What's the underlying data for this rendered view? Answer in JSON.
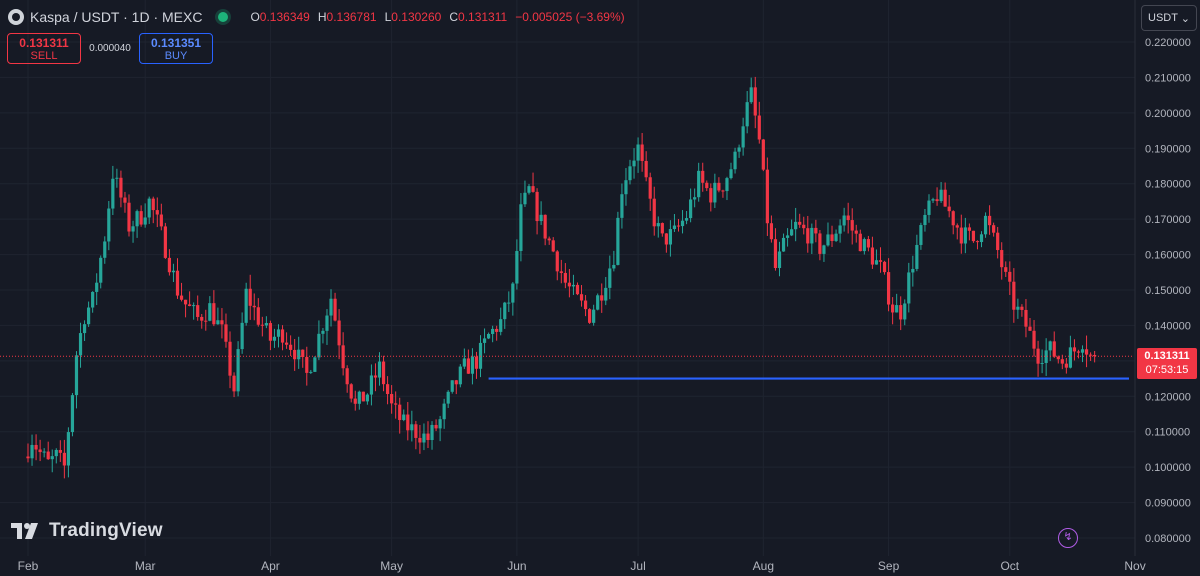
{
  "header": {
    "symbol_title": "Kaspa / USDT · 1D · MEXC",
    "ohlc": [
      {
        "key": "O",
        "value": "0.136349"
      },
      {
        "key": "H",
        "value": "0.136781"
      },
      {
        "key": "L",
        "value": "0.130260"
      },
      {
        "key": "C",
        "value": "0.131311"
      }
    ],
    "change": "−0.005025 (−3.69%)"
  },
  "trade": {
    "sell_price": "0.131311",
    "sell_label": "SELL",
    "spread": "0.000040",
    "buy_price": "0.131351",
    "buy_label": "BUY"
  },
  "currency": "USDT",
  "price_tag": {
    "price": "0.131311",
    "countdown": "07:53:15"
  },
  "brand": "TradingView",
  "colors": {
    "up": "#26a69a",
    "down": "#f23645",
    "support_line": "#2962ff",
    "background": "#161a25",
    "flash_icon": "#b05ce6"
  },
  "icons": [
    "kaspa-logo-icon",
    "market-status-icon",
    "chevron-down-icon",
    "tradingview-logo-icon",
    "flash-icon"
  ],
  "chart_data": {
    "type": "candlestick",
    "x_ticks": [
      "Feb",
      "Mar",
      "Apr",
      "May",
      "Jun",
      "Jul",
      "Aug",
      "Sep",
      "Oct",
      "Nov"
    ],
    "y_ticks": [
      "0.220000",
      "0.210000",
      "0.200000",
      "0.190000",
      "0.180000",
      "0.170000",
      "0.160000",
      "0.150000",
      "0.140000",
      "0.130000",
      "0.120000",
      "0.110000",
      "0.100000",
      "0.090000",
      "0.080000"
    ],
    "ylim": [
      0.08,
      0.22
    ],
    "x_range": [
      "2024-02-01",
      "2024-10-31"
    ],
    "last_price": 0.131311,
    "support_level": 0.125,
    "support_line_range": [
      "2024-05-25",
      "2024-10-31"
    ],
    "anchors": [
      [
        "2024-02-01",
        0.103
      ],
      [
        "2024-02-03",
        0.108
      ],
      [
        "2024-02-05",
        0.104
      ],
      [
        "2024-02-07",
        0.101
      ],
      [
        "2024-02-09",
        0.103
      ],
      [
        "2024-02-11",
        0.1
      ],
      [
        "2024-02-14",
        0.132
      ],
      [
        "2024-02-16",
        0.143
      ],
      [
        "2024-02-18",
        0.147
      ],
      [
        "2024-02-21",
        0.165
      ],
      [
        "2024-02-23",
        0.183
      ],
      [
        "2024-02-25",
        0.176
      ],
      [
        "2024-02-27",
        0.168
      ],
      [
        "2024-03-01",
        0.171
      ],
      [
        "2024-03-03",
        0.175
      ],
      [
        "2024-03-05",
        0.169
      ],
      [
        "2024-03-07",
        0.162
      ],
      [
        "2024-03-10",
        0.15
      ],
      [
        "2024-03-12",
        0.146
      ],
      [
        "2024-03-15",
        0.142
      ],
      [
        "2024-03-18",
        0.145
      ],
      [
        "2024-03-21",
        0.138
      ],
      [
        "2024-03-24",
        0.122
      ],
      [
        "2024-03-27",
        0.149
      ],
      [
        "2024-03-30",
        0.142
      ],
      [
        "2024-04-02",
        0.136
      ],
      [
        "2024-04-05",
        0.138
      ],
      [
        "2024-04-08",
        0.133
      ],
      [
        "2024-04-11",
        0.126
      ],
      [
        "2024-04-14",
        0.137
      ],
      [
        "2024-04-17",
        0.148
      ],
      [
        "2024-04-20",
        0.13
      ],
      [
        "2024-04-23",
        0.117
      ],
      [
        "2024-04-26",
        0.121
      ],
      [
        "2024-04-29",
        0.128
      ],
      [
        "2024-05-02",
        0.117
      ],
      [
        "2024-05-05",
        0.112
      ],
      [
        "2024-05-08",
        0.11
      ],
      [
        "2024-05-11",
        0.108
      ],
      [
        "2024-05-14",
        0.113
      ],
      [
        "2024-05-17",
        0.122
      ],
      [
        "2024-05-20",
        0.128
      ],
      [
        "2024-05-23",
        0.13
      ],
      [
        "2024-05-26",
        0.137
      ],
      [
        "2024-05-29",
        0.141
      ],
      [
        "2024-06-01",
        0.15
      ],
      [
        "2024-06-03",
        0.172
      ],
      [
        "2024-06-05",
        0.178
      ],
      [
        "2024-06-08",
        0.169
      ],
      [
        "2024-06-11",
        0.161
      ],
      [
        "2024-06-14",
        0.152
      ],
      [
        "2024-06-17",
        0.147
      ],
      [
        "2024-06-20",
        0.143
      ],
      [
        "2024-06-23",
        0.15
      ],
      [
        "2024-06-26",
        0.16
      ],
      [
        "2024-06-28",
        0.179
      ],
      [
        "2024-06-30",
        0.186
      ],
      [
        "2024-07-02",
        0.19
      ],
      [
        "2024-07-04",
        0.179
      ],
      [
        "2024-07-06",
        0.17
      ],
      [
        "2024-07-08",
        0.164
      ],
      [
        "2024-07-11",
        0.166
      ],
      [
        "2024-07-14",
        0.171
      ],
      [
        "2024-07-17",
        0.181
      ],
      [
        "2024-07-20",
        0.177
      ],
      [
        "2024-07-23",
        0.18
      ],
      [
        "2024-07-26",
        0.187
      ],
      [
        "2024-07-28",
        0.198
      ],
      [
        "2024-07-30",
        0.205
      ],
      [
        "2024-08-01",
        0.192
      ],
      [
        "2024-08-03",
        0.17
      ],
      [
        "2024-08-05",
        0.156
      ],
      [
        "2024-08-07",
        0.162
      ],
      [
        "2024-08-10",
        0.168
      ],
      [
        "2024-08-13",
        0.166
      ],
      [
        "2024-08-16",
        0.162
      ],
      [
        "2024-08-19",
        0.165
      ],
      [
        "2024-08-22",
        0.171
      ],
      [
        "2024-08-25",
        0.165
      ],
      [
        "2024-08-28",
        0.161
      ],
      [
        "2024-08-31",
        0.156
      ],
      [
        "2024-09-03",
        0.145
      ],
      [
        "2024-09-05",
        0.144
      ],
      [
        "2024-09-08",
        0.158
      ],
      [
        "2024-09-11",
        0.17
      ],
      [
        "2024-09-14",
        0.177
      ],
      [
        "2024-09-17",
        0.172
      ],
      [
        "2024-09-20",
        0.166
      ],
      [
        "2024-09-23",
        0.164
      ],
      [
        "2024-09-26",
        0.17
      ],
      [
        "2024-09-29",
        0.161
      ],
      [
        "2024-10-01",
        0.153
      ],
      [
        "2024-10-03",
        0.146
      ],
      [
        "2024-10-06",
        0.14
      ],
      [
        "2024-10-09",
        0.132
      ],
      [
        "2024-10-12",
        0.133
      ],
      [
        "2024-10-15",
        0.13
      ],
      [
        "2024-10-18",
        0.133
      ],
      [
        "2024-10-20",
        0.136
      ],
      [
        "2024-10-22",
        0.1313
      ]
    ]
  }
}
